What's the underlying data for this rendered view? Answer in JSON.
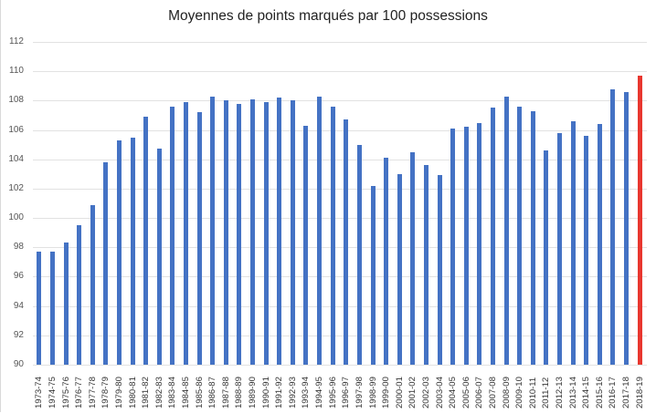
{
  "chart_data": {
    "type": "bar",
    "title": "Moyennes de points marqués par 100 possessions",
    "xlabel": "",
    "ylabel": "",
    "ylim": [
      90,
      112
    ],
    "yticks": [
      90,
      92,
      94,
      96,
      98,
      100,
      102,
      104,
      106,
      108,
      110,
      112
    ],
    "grid": true,
    "legend": null,
    "colors": {
      "default": "#4472c4",
      "highlight": "#e8372f"
    },
    "highlight_category": "2018-19",
    "categories": [
      "1973-74",
      "1974-75",
      "1975-76",
      "1976-77",
      "1977-78",
      "1978-79",
      "1979-80",
      "1980-81",
      "1981-82",
      "1982-83",
      "1983-84",
      "1984-85",
      "1985-86",
      "1986-87",
      "1987-88",
      "1988-89",
      "1989-90",
      "1990-91",
      "1991-92",
      "1992-93",
      "1993-94",
      "1994-95",
      "1995-96",
      "1996-97",
      "1997-98",
      "1998-99",
      "1999-00",
      "2000-01",
      "2001-02",
      "2002-03",
      "2003-04",
      "2004-05",
      "2005-06",
      "2006-07",
      "2007-08",
      "2008-09",
      "2009-10",
      "2010-11",
      "2011-12",
      "2012-13",
      "2013-14",
      "2014-15",
      "2015-16",
      "2016-17",
      "2017-18",
      "2018-19"
    ],
    "values": [
      97.7,
      97.7,
      98.3,
      99.5,
      100.9,
      103.8,
      105.3,
      105.5,
      106.9,
      104.7,
      107.6,
      107.9,
      107.2,
      108.3,
      108.0,
      107.8,
      108.1,
      107.9,
      108.2,
      108.0,
      106.3,
      108.3,
      107.6,
      106.7,
      105.0,
      102.2,
      104.1,
      103.0,
      104.5,
      103.6,
      102.9,
      106.1,
      106.2,
      106.5,
      107.5,
      108.3,
      107.6,
      107.3,
      104.6,
      105.8,
      106.6,
      105.6,
      106.4,
      108.8,
      108.6,
      109.7
    ]
  }
}
